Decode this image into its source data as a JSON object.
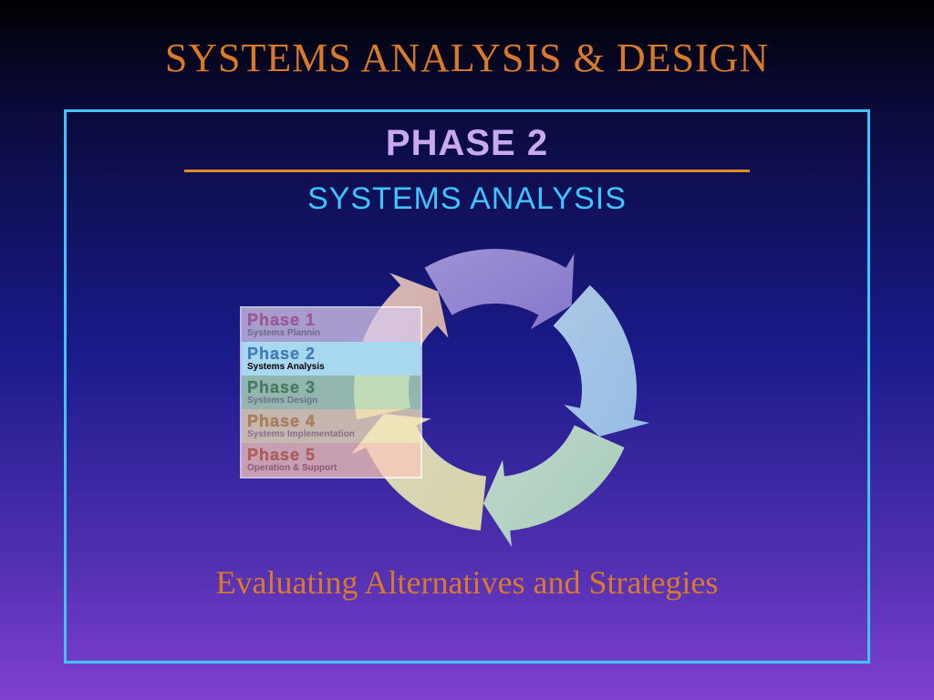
{
  "colors": {
    "title": "#d97a2a",
    "phase_heading": "#c8a8f0",
    "divider": "#e08a2a",
    "subtitle": "#3fc4ff",
    "bottom_text": "#d97a2a",
    "border": "#3fc4ff"
  },
  "title": "SYSTEMS ANALYSIS & DESIGN",
  "phase_heading": "PHASE 2",
  "subtitle": "SYSTEMS ANALYSIS",
  "bottom_text": "Evaluating Alternatives and Strategies",
  "cycle": {
    "arrows": [
      {
        "color1": "#b8a8e8",
        "color2": "#9888d8"
      },
      {
        "color1": "#c8e8f8",
        "color2": "#a8d8f0"
      },
      {
        "color1": "#d8f8d8",
        "color2": "#b8e8b8"
      },
      {
        "color1": "#f8f8c8",
        "color2": "#f0f0a8"
      },
      {
        "color1": "#f8d8c8",
        "color2": "#f0c0a8"
      }
    ]
  },
  "phases": [
    {
      "title": "Phase 1",
      "sub": "Systems Plannin",
      "bg": "#d8c8e8",
      "title_color": "#d070a0",
      "sub_color": "#888"
    },
    {
      "title": "Phase 2",
      "sub": "Systems Analysis",
      "bg": "#a8d8f0",
      "title_color": "#4080c0",
      "sub_color": "#000",
      "active": true
    },
    {
      "title": "Phase 3",
      "sub": "Systems Design",
      "bg": "#b8e8b8",
      "title_color": "#50a050",
      "sub_color": "#888"
    },
    {
      "title": "Phase 4",
      "sub": "Systems Implementation",
      "bg": "#f8e8b8",
      "title_color": "#e0a040",
      "sub_color": "#a88"
    },
    {
      "title": "Phase 5",
      "sub": "Operation & Support",
      "bg": "#f8c8b8",
      "title_color": "#e07040",
      "sub_color": "#a66"
    }
  ]
}
